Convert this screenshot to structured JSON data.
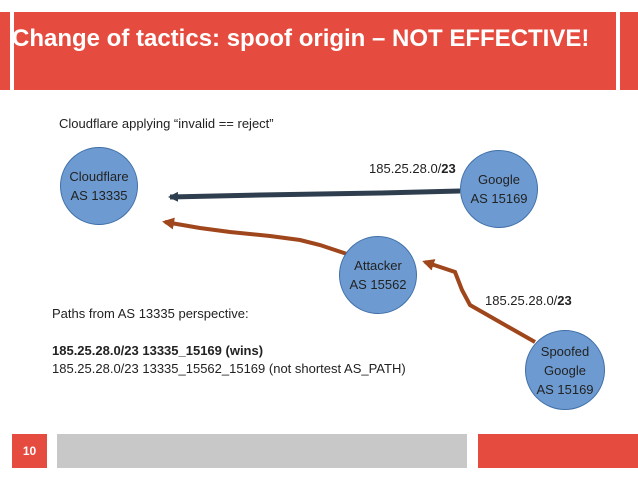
{
  "slide": {
    "title": "Change of tactics: spoof origin – NOT EFFECTIVE!",
    "subtitle": "Cloudflare applying “invalid == reject”",
    "page_number": "10"
  },
  "nodes": {
    "cloudflare": {
      "line1": "Cloudflare",
      "line2": "AS 13335"
    },
    "google": {
      "line1": "Google",
      "line2": "AS 15169"
    },
    "attacker": {
      "line1": "Attacker",
      "line2": "AS 15562"
    },
    "spoofed": {
      "line1": "Spoofed",
      "line2": "Google",
      "line3": "AS 15169"
    }
  },
  "edges": {
    "google_prefix": {
      "base": "185.25.28.0/",
      "len": "23"
    },
    "spoofed_prefix": {
      "base": "185.25.28.0/",
      "len": "23"
    }
  },
  "paths": {
    "heading": "Paths from AS 13335 perspective:",
    "winning": "185.25.28.0/23 13335_15169 (wins)",
    "losing": "185.25.28.0/23 13335_15562_15169 (not shortest AS_PATH)"
  },
  "colors": {
    "accent_red": "#e54b3f",
    "node_fill": "#6d9bd1",
    "legit_arrow": "#2f3e4e",
    "attack_arrow": "#a0461c"
  }
}
